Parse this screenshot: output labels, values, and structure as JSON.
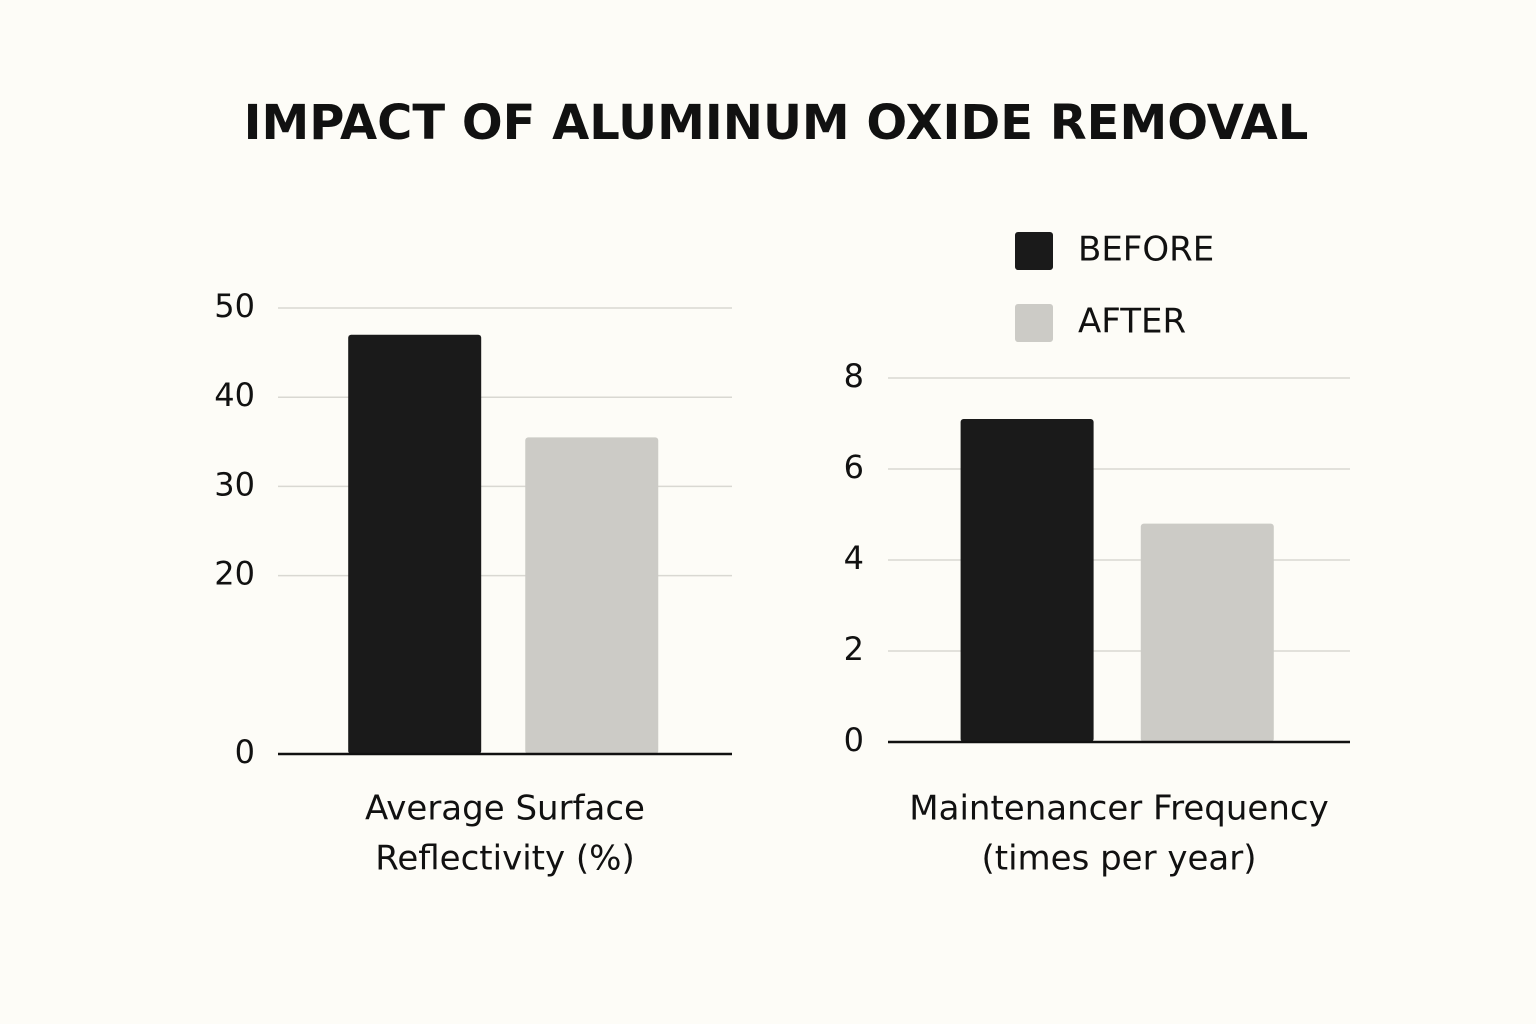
{
  "title": "IMPACT OF ALUMINUM OXIDE REMOVAL",
  "chart_data": [
    {
      "type": "bar",
      "xlabel": [
        "Average Surface",
        "Reflectivity (%)"
      ],
      "series": [
        {
          "color": "#1a1a1a",
          "values": [
            47
          ]
        },
        {
          "color": "#cccbc6",
          "values": [
            35.5
          ]
        }
      ],
      "ylim": [
        0,
        50
      ],
      "yticks": [
        0,
        20,
        30,
        40,
        50
      ],
      "grid": true
    },
    {
      "type": "bar",
      "xlabel": [
        "Maintenancer Frequency",
        "(times per year)"
      ],
      "series": [
        {
          "name": "BEFORE",
          "color": "#1a1a1a",
          "values": [
            7.1
          ]
        },
        {
          "name": "AFTER",
          "color": "#cccbc6",
          "values": [
            4.8
          ]
        }
      ],
      "ylim": [
        0,
        8
      ],
      "yticks": [
        0,
        2,
        4,
        6,
        8
      ],
      "grid": true,
      "legend": "upper right"
    }
  ]
}
